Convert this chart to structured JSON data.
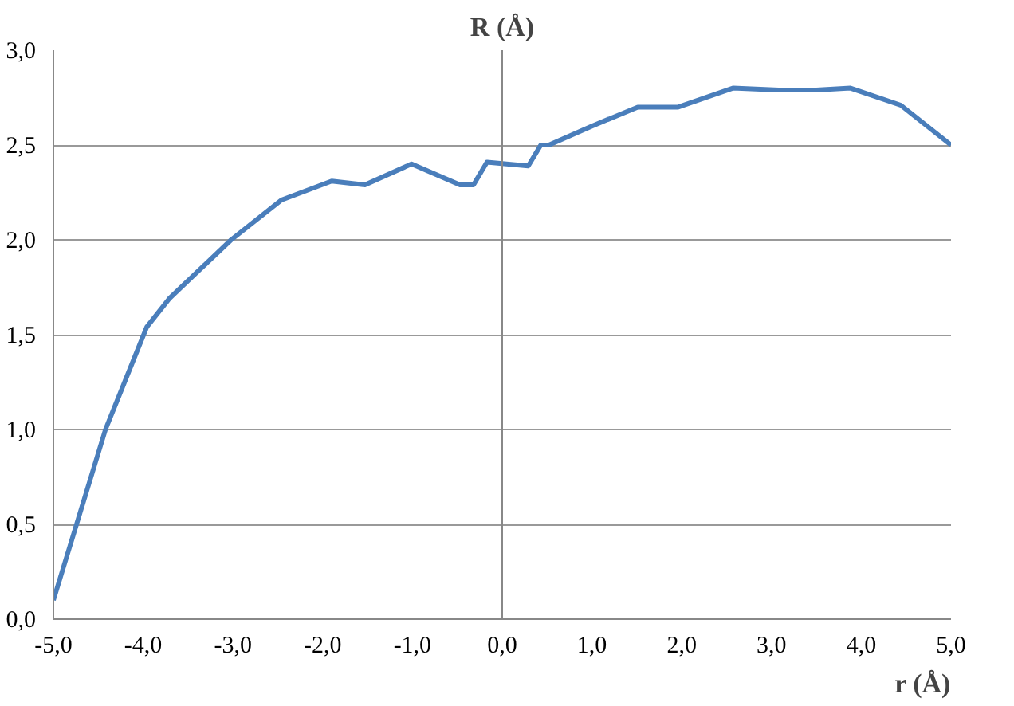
{
  "chart_data": {
    "type": "line",
    "xlabel": "r (Å)",
    "ylabel": "R (Å)",
    "x": [
      -5.0,
      -4.42,
      -3.96,
      -3.71,
      -3.02,
      -2.46,
      -1.9,
      -1.53,
      -1.01,
      -0.47,
      -0.32,
      -0.17,
      0.29,
      0.43,
      0.52,
      1.0,
      1.51,
      1.96,
      2.57,
      3.08,
      3.5,
      3.88,
      4.44,
      5.0
    ],
    "series": [
      {
        "color": "#4a7ebb",
        "values": [
          0.1,
          1.0,
          1.54,
          1.69,
          2.0,
          2.21,
          2.31,
          2.29,
          2.4,
          2.29,
          2.29,
          2.41,
          2.39,
          2.5,
          2.5,
          2.6,
          2.7,
          2.7,
          2.8,
          2.79,
          2.79,
          2.8,
          2.71,
          2.5
        ]
      }
    ],
    "xlim": [
      -5,
      5
    ],
    "ylim": [
      0,
      3
    ],
    "xticks": [
      {
        "value": -5,
        "label": "-5,0"
      },
      {
        "value": -4,
        "label": "-4,0"
      },
      {
        "value": -3,
        "label": "-3,0"
      },
      {
        "value": -2,
        "label": "-2,0"
      },
      {
        "value": -1,
        "label": "-1,0"
      },
      {
        "value": 0,
        "label": "0,0"
      },
      {
        "value": 1,
        "label": "1,0"
      },
      {
        "value": 2,
        "label": "2,0"
      },
      {
        "value": 3,
        "label": "3,0"
      },
      {
        "value": 4,
        "label": "4,0"
      },
      {
        "value": 5,
        "label": "5,0"
      }
    ],
    "yticks": [
      {
        "value": 0,
        "label": "0,0"
      },
      {
        "value": 0.5,
        "label": "0,5"
      },
      {
        "value": 1,
        "label": "1,0"
      },
      {
        "value": 1.5,
        "label": "1,5"
      },
      {
        "value": 2,
        "label": "2,0"
      },
      {
        "value": 2.5,
        "label": "2,5"
      },
      {
        "value": 3,
        "label": "3,0"
      }
    ],
    "grid": "y",
    "marker": "none",
    "line_style": "solid"
  }
}
